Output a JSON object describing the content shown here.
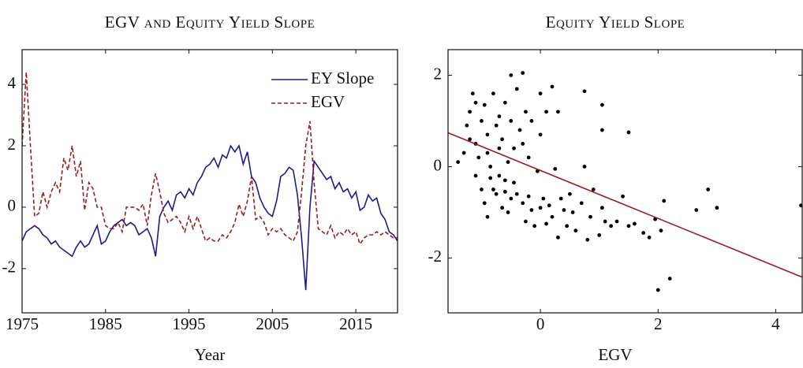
{
  "chart_data": [
    {
      "type": "line",
      "title": "EGV and Equity Yield Slope",
      "x_label": "Year",
      "xlim": [
        1975,
        2020
      ],
      "xticks": [
        1975,
        1985,
        1995,
        2005,
        2015
      ],
      "ylim": [
        -3.44,
        5.13
      ],
      "yticks": [
        -2,
        0,
        2,
        4
      ],
      "legend": "north east",
      "x": [
        1975,
        1975.5,
        1976,
        1976.5,
        1977,
        1977.5,
        1978,
        1978.5,
        1979,
        1979.5,
        1980,
        1980.5,
        1981,
        1981.5,
        1982,
        1982.5,
        1983,
        1983.5,
        1984,
        1984.5,
        1985,
        1985.5,
        1986,
        1986.5,
        1987,
        1987.5,
        1988,
        1988.5,
        1989,
        1989.5,
        1990,
        1990.5,
        1991,
        1991.5,
        1992,
        1992.5,
        1993,
        1993.5,
        1994,
        1994.5,
        1995,
        1995.5,
        1996,
        1996.5,
        1997,
        1997.5,
        1998,
        1998.5,
        1999,
        1999.5,
        2000,
        2000.5,
        2001,
        2001.5,
        2002,
        2002.5,
        2003,
        2003.5,
        2004,
        2004.5,
        2005,
        2005.5,
        2006,
        2006.5,
        2007,
        2007.5,
        2008,
        2008.5,
        2009,
        2009.5,
        2010,
        2010.5,
        2011,
        2011.5,
        2012,
        2012.5,
        2013,
        2013.5,
        2014,
        2014.5,
        2015,
        2015.5,
        2016,
        2016.5,
        2017,
        2017.5,
        2018,
        2018.5,
        2019,
        2019.5,
        2020
      ],
      "series": [
        {
          "name": "EY Slope",
          "color": "#1c1c8c",
          "dash": false,
          "values": [
            -1.1,
            -0.8,
            -0.7,
            -0.6,
            -0.7,
            -0.9,
            -1.0,
            -1.2,
            -1.1,
            -1.3,
            -1.4,
            -1.5,
            -1.6,
            -1.3,
            -1.1,
            -1.3,
            -1.2,
            -0.9,
            -0.6,
            -1.2,
            -1.1,
            -0.8,
            -0.6,
            -0.5,
            -0.4,
            -0.6,
            -0.5,
            -0.6,
            -0.9,
            -0.8,
            -0.7,
            -1.0,
            -1.6,
            -0.3,
            0.0,
            0.2,
            -0.1,
            0.4,
            0.5,
            0.3,
            0.6,
            0.4,
            0.8,
            1.0,
            1.3,
            1.4,
            1.6,
            1.3,
            1.7,
            1.6,
            2.0,
            1.8,
            2.0,
            1.4,
            1.8,
            1.0,
            0.8,
            0.3,
            0.0,
            -0.2,
            -0.3,
            0.2,
            1.0,
            1.1,
            1.3,
            1.2,
            0.4,
            -1.0,
            -2.7,
            0.0,
            1.5,
            1.3,
            1.1,
            0.9,
            1.0,
            0.6,
            0.8,
            0.5,
            0.6,
            0.3,
            0.5,
            -0.1,
            0.0,
            0.4,
            0.2,
            0.3,
            -0.2,
            -0.4,
            -0.8,
            -0.9,
            -1.1
          ]
        },
        {
          "name": "EGV",
          "color": "#9a1c1c",
          "dash": true,
          "values": [
            2.0,
            4.4,
            2.0,
            -0.3,
            -0.2,
            0.5,
            0.0,
            0.5,
            0.8,
            0.5,
            1.6,
            1.2,
            2.0,
            1.0,
            1.5,
            -0.1,
            0.8,
            0.6,
            0.0,
            0.0,
            -0.6,
            -0.7,
            -0.7,
            -0.5,
            -0.8,
            0.0,
            0.0,
            0.0,
            -0.1,
            0.1,
            -0.6,
            0.4,
            1.1,
            0.5,
            -0.2,
            -0.5,
            -0.4,
            -0.3,
            -0.5,
            -0.8,
            -0.3,
            -0.7,
            -0.3,
            -0.7,
            -1.1,
            -1.0,
            -1.1,
            -1.1,
            -0.9,
            -1.0,
            -0.8,
            -0.5,
            0.1,
            -0.3,
            0.2,
            1.0,
            -0.4,
            -0.3,
            -0.5,
            -0.9,
            -0.7,
            -0.8,
            -0.7,
            -0.9,
            -1.0,
            -1.1,
            -0.8,
            0.5,
            2.0,
            2.8,
            0.8,
            -0.7,
            -0.8,
            -0.9,
            -0.6,
            -1.0,
            -0.8,
            -0.9,
            -0.7,
            -0.9,
            -0.8,
            -1.2,
            -1.0,
            -0.9,
            -0.9,
            -0.8,
            -0.9,
            -0.8,
            -0.9,
            -1.0,
            -1.0
          ]
        }
      ]
    },
    {
      "type": "scatter",
      "title": "Equity Yield Slope",
      "x_label": "EGV",
      "xlim": [
        -1.57,
        4.45
      ],
      "xticks": [
        0,
        2,
        4
      ],
      "ylim": [
        -3.2,
        2.56
      ],
      "yticks": [
        -2,
        0,
        2
      ],
      "series": [
        {
          "type": "scatter",
          "color": "#000000",
          "x": [
            -1.4,
            -1.3,
            -1.25,
            -1.2,
            -1.15,
            -1.1,
            -1.2,
            -1.1,
            -1.05,
            -1.0,
            -0.95,
            -0.9,
            -0.9,
            -0.85,
            -0.8,
            -0.8,
            -0.75,
            -0.7,
            -0.7,
            -0.65,
            -0.6,
            -0.6,
            -0.55,
            -0.5,
            -0.5,
            -0.45,
            -0.4,
            -0.35,
            -0.3,
            -0.3,
            -0.25,
            -0.2,
            -0.15,
            -1.1,
            -1.0,
            -0.95,
            -0.9,
            -0.85,
            -0.75,
            -0.7,
            -0.65,
            -0.6,
            -0.55,
            -0.5,
            -0.45,
            -0.4,
            -0.3,
            -0.25,
            -0.2,
            -0.15,
            -0.1,
            -0.05,
            0.0,
            0.05,
            0.1,
            0.15,
            0.2,
            0.25,
            0.3,
            0.35,
            0.4,
            0.45,
            0.5,
            0.55,
            0.6,
            0.7,
            0.75,
            0.8,
            0.85,
            0.9,
            1.0,
            1.05,
            1.1,
            1.2,
            1.3,
            1.4,
            1.5,
            1.6,
            1.75,
            1.85,
            1.95,
            2.05,
            2.1,
            0.0,
            0.2,
            0.1,
            0.3,
            0.0,
            0.75,
            1.05,
            1.05,
            1.5,
            2.0,
            2.2,
            2.65,
            2.85,
            3.0,
            4.43
          ],
          "values": [
            0.1,
            0.3,
            0.9,
            1.2,
            1.6,
            1.4,
            0.6,
            0.5,
            0.2,
            1.0,
            1.35,
            0.7,
            0.3,
            0.0,
            1.6,
            -0.5,
            0.9,
            0.4,
            1.1,
            0.6,
            1.4,
            -0.3,
            0.1,
            2.0,
            1.0,
            0.4,
            1.7,
            0.8,
            2.05,
            0.5,
            1.2,
            0.2,
            1.0,
            -0.2,
            -0.5,
            -0.8,
            -1.1,
            -0.25,
            -0.6,
            -0.2,
            -0.9,
            -0.55,
            -1.0,
            -0.7,
            -0.35,
            -0.6,
            -0.8,
            -1.2,
            -0.65,
            -0.95,
            -1.3,
            -0.1,
            -0.9,
            -0.7,
            -1.25,
            -0.85,
            -1.1,
            -0.05,
            -1.55,
            -0.7,
            -0.95,
            -1.3,
            -0.6,
            -1.0,
            -1.4,
            -0.8,
            0.0,
            -1.6,
            -1.1,
            -0.5,
            -1.5,
            -0.9,
            -1.2,
            -1.3,
            -1.2,
            -0.65,
            -1.3,
            -1.25,
            -1.45,
            -1.55,
            -1.15,
            -1.4,
            -0.75,
            0.7,
            1.75,
            1.2,
            1.2,
            1.6,
            1.65,
            1.35,
            0.8,
            0.75,
            -2.7,
            -2.45,
            -0.95,
            -0.5,
            -0.9,
            -0.85
          ]
        },
        {
          "type": "line",
          "color": "#9a1c1c",
          "x": [
            -1.57,
            4.45
          ],
          "values": [
            0.74,
            -2.42
          ]
        }
      ]
    }
  ]
}
